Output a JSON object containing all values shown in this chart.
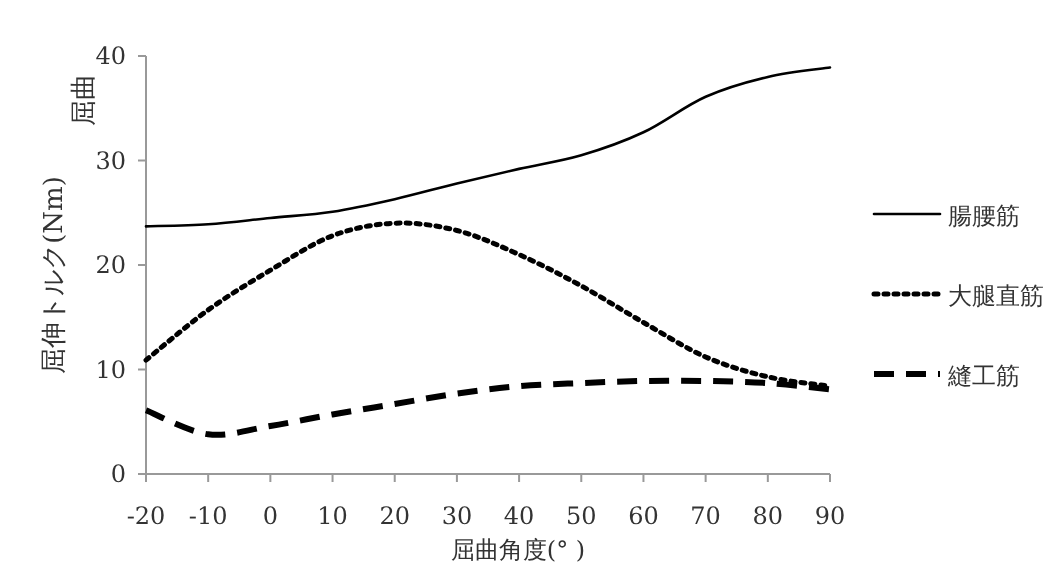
{
  "chart_data": {
    "type": "line",
    "xlabel": "屈曲角度(° )",
    "ylabel": "屈伸トルク(Nm)",
    "annotations": [
      "屈曲"
    ],
    "x": [
      -20,
      -10,
      0,
      10,
      20,
      30,
      40,
      50,
      60,
      70,
      80,
      90
    ],
    "series": [
      {
        "name": "腸腰筋",
        "color": "#000000",
        "line_style": "solid",
        "values": [
          23.7,
          23.9,
          24.5,
          25.1,
          26.3,
          27.8,
          29.2,
          30.5,
          32.7,
          36.1,
          38.0,
          38.9
        ]
      },
      {
        "name": "大腿直筋",
        "color": "#000000",
        "line_style": "dotted",
        "values": [
          10.9,
          15.7,
          19.5,
          22.8,
          24.0,
          23.3,
          21.0,
          18.0,
          14.5,
          11.2,
          9.3,
          8.4
        ]
      },
      {
        "name": "縫工筋",
        "color": "#000000",
        "line_style": "dashed",
        "values": [
          6.1,
          3.8,
          4.6,
          5.7,
          6.7,
          7.7,
          8.4,
          8.7,
          8.9,
          8.9,
          8.7,
          8.1
        ]
      }
    ],
    "xlim": [
      -20,
      90
    ],
    "ylim": [
      0,
      40
    ],
    "xticks": [
      -20,
      -10,
      0,
      10,
      20,
      30,
      40,
      50,
      60,
      70,
      80,
      90
    ],
    "yticks": [
      0,
      10,
      20,
      30,
      40
    ],
    "legend": "right"
  }
}
